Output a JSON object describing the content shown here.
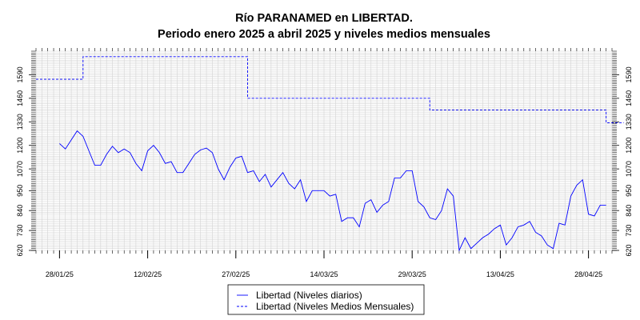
{
  "chart_data": {
    "type": "line",
    "title": "Río PARANAMED en LIBERTAD.",
    "subtitle": "Periodo enero 2025 a abril 2025 y niveles medios mensuales",
    "xlabel": "",
    "ylabel": "",
    "xlim": [
      "2025-01-24",
      "2025-05-02"
    ],
    "ylim": [
      620,
      1720
    ],
    "y_ticks": [
      620,
      730,
      840,
      950,
      1070,
      1200,
      1330,
      1460,
      1590
    ],
    "x_ticks": [
      "2025-01-28",
      "2025-02-12",
      "2025-02-27",
      "2025-03-14",
      "2025-03-29",
      "2025-04-13",
      "2025-04-28"
    ],
    "x_tick_labels": [
      "28/01/25",
      "12/02/25",
      "27/02/25",
      "14/03/25",
      "29/03/25",
      "13/04/25",
      "28/04/25"
    ],
    "grid": true,
    "legend_position": "bottom-center",
    "series": [
      {
        "name": "Libertad (Niveles diarios)",
        "style": "solid",
        "color": "#0000ff",
        "x": [
          "2025-01-28",
          "2025-01-29",
          "2025-01-30",
          "2025-01-31",
          "2025-02-01",
          "2025-02-02",
          "2025-02-03",
          "2025-02-04",
          "2025-02-05",
          "2025-02-06",
          "2025-02-07",
          "2025-02-08",
          "2025-02-09",
          "2025-02-10",
          "2025-02-11",
          "2025-02-12",
          "2025-02-13",
          "2025-02-14",
          "2025-02-15",
          "2025-02-16",
          "2025-02-17",
          "2025-02-18",
          "2025-02-19",
          "2025-02-20",
          "2025-02-21",
          "2025-02-22",
          "2025-02-23",
          "2025-02-24",
          "2025-02-25",
          "2025-02-26",
          "2025-02-27",
          "2025-02-28",
          "2025-03-01",
          "2025-03-02",
          "2025-03-03",
          "2025-03-04",
          "2025-03-05",
          "2025-03-06",
          "2025-03-07",
          "2025-03-08",
          "2025-03-09",
          "2025-03-10",
          "2025-03-11",
          "2025-03-12",
          "2025-03-13",
          "2025-03-14",
          "2025-03-15",
          "2025-03-16",
          "2025-03-17",
          "2025-03-18",
          "2025-03-19",
          "2025-03-20",
          "2025-03-21",
          "2025-03-22",
          "2025-03-23",
          "2025-03-24",
          "2025-03-25",
          "2025-03-26",
          "2025-03-27",
          "2025-03-28",
          "2025-03-29",
          "2025-03-30",
          "2025-03-31",
          "2025-04-01",
          "2025-04-02",
          "2025-04-03",
          "2025-04-04",
          "2025-04-05",
          "2025-04-06",
          "2025-04-07",
          "2025-04-08",
          "2025-04-09",
          "2025-04-10",
          "2025-04-11",
          "2025-04-12",
          "2025-04-13",
          "2025-04-14",
          "2025-04-15",
          "2025-04-16",
          "2025-04-17",
          "2025-04-18",
          "2025-04-19",
          "2025-04-20",
          "2025-04-21",
          "2025-04-22",
          "2025-04-23",
          "2025-04-24",
          "2025-04-25",
          "2025-04-26",
          "2025-04-27",
          "2025-04-28",
          "2025-04-29",
          "2025-04-30",
          "2025-05-01"
        ],
        "y": [
          1210,
          1180,
          1230,
          1280,
          1250,
          1170,
          1090,
          1090,
          1150,
          1195,
          1160,
          1180,
          1160,
          1100,
          1060,
          1170,
          1200,
          1160,
          1100,
          1110,
          1050,
          1050,
          1100,
          1150,
          1175,
          1185,
          1160,
          1070,
          1010,
          1080,
          1130,
          1140,
          1050,
          1060,
          1000,
          1040,
          970,
          1010,
          1050,
          990,
          960,
          1010,
          890,
          950,
          950,
          950,
          920,
          930,
          780,
          800,
          800,
          750,
          880,
          900,
          830,
          870,
          890,
          1020,
          1020,
          1060,
          1060,
          890,
          860,
          800,
          790,
          840,
          960,
          920,
          620,
          690,
          630,
          660,
          690,
          710,
          740,
          760,
          650,
          690,
          750,
          760,
          780,
          720,
          700,
          650,
          630,
          770,
          760,
          920,
          980,
          1010,
          820,
          810,
          870,
          870
        ]
      },
      {
        "name": "Libertad (Niveles Medios Mensuales)",
        "style": "dashed",
        "color": "#0000ff",
        "x": [
          "2025-01-24",
          "2025-02-01",
          "2025-02-01",
          "2025-03-01",
          "2025-03-01",
          "2025-04-01",
          "2025-04-01",
          "2025-05-01",
          "2025-05-01",
          "2025-05-04"
        ],
        "y": [
          1565,
          1565,
          1690,
          1690,
          1460,
          1460,
          1395,
          1395,
          1325,
          1325
        ]
      }
    ]
  }
}
